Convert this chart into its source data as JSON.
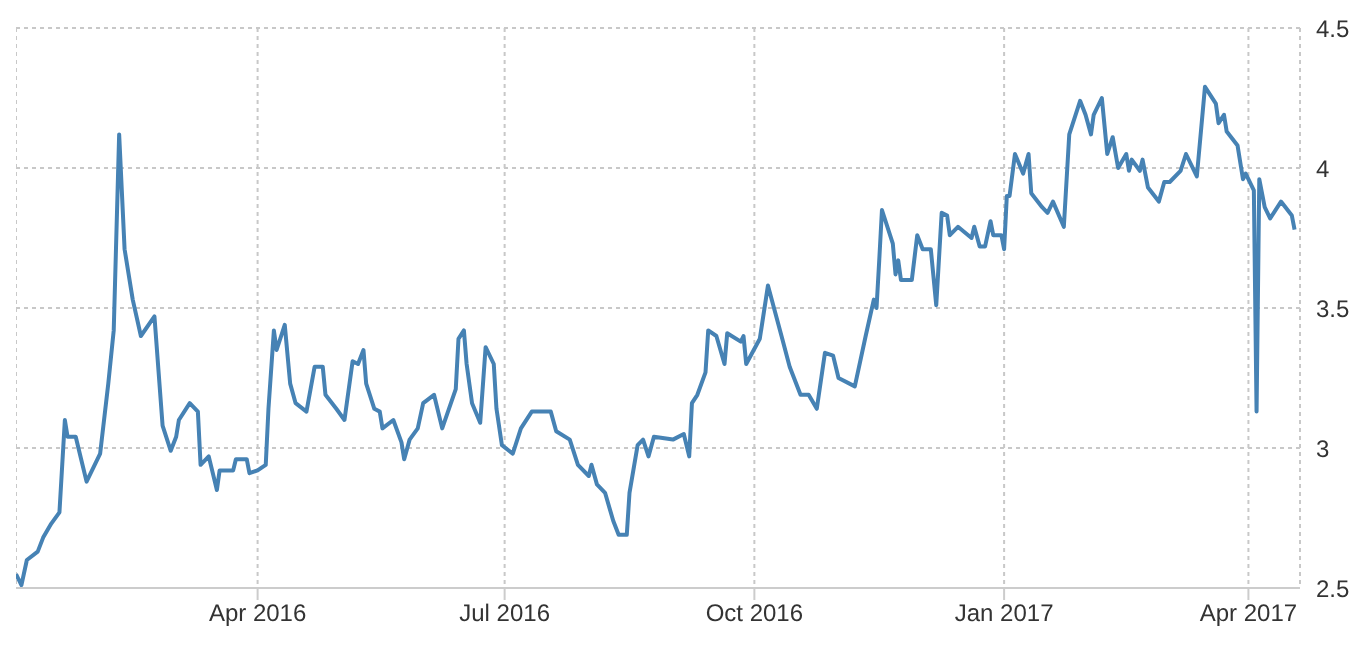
{
  "chart_data": {
    "type": "line",
    "grid": true,
    "xlim": [
      "2016-01-03",
      "2017-04-20"
    ],
    "ylim": [
      2.5,
      4.5
    ],
    "yticks": [
      2.5,
      3,
      3.5,
      4,
      4.5
    ],
    "xticks": [
      {
        "value": "2016-04-01",
        "label": "Apr 2016"
      },
      {
        "value": "2016-07-01",
        "label": "Jul 2016"
      },
      {
        "value": "2016-10-01",
        "label": "Oct 2016"
      },
      {
        "value": "2017-01-01",
        "label": "Jan 2017"
      },
      {
        "value": "2017-04-01",
        "label": "Apr 2017"
      }
    ],
    "x": [
      "2016-01-03",
      "2016-01-05",
      "2016-01-07",
      "2016-01-11",
      "2016-01-13",
      "2016-01-16",
      "2016-01-19",
      "2016-01-21",
      "2016-01-22",
      "2016-01-25",
      "2016-01-27",
      "2016-01-29",
      "2016-02-03",
      "2016-02-06",
      "2016-02-08",
      "2016-02-10",
      "2016-02-12",
      "2016-02-15",
      "2016-02-18",
      "2016-02-23",
      "2016-02-26",
      "2016-02-29",
      "2016-03-02",
      "2016-03-03",
      "2016-03-07",
      "2016-03-10",
      "2016-03-11",
      "2016-03-14",
      "2016-03-17",
      "2016-03-18",
      "2016-03-23",
      "2016-03-24",
      "2016-03-28",
      "2016-03-29",
      "2016-04-01",
      "2016-04-04",
      "2016-04-05",
      "2016-04-07",
      "2016-04-08",
      "2016-04-11",
      "2016-04-13",
      "2016-04-15",
      "2016-04-19",
      "2016-04-22",
      "2016-04-25",
      "2016-04-26",
      "2016-04-30",
      "2016-05-03",
      "2016-05-06",
      "2016-05-08",
      "2016-05-10",
      "2016-05-11",
      "2016-05-14",
      "2016-05-16",
      "2016-05-17",
      "2016-05-21",
      "2016-05-24",
      "2016-05-25",
      "2016-05-27",
      "2016-05-30",
      "2016-06-01",
      "2016-06-05",
      "2016-06-08",
      "2016-06-13",
      "2016-06-14",
      "2016-06-16",
      "2016-06-17",
      "2016-06-19",
      "2016-06-22",
      "2016-06-24",
      "2016-06-27",
      "2016-06-28",
      "2016-06-30",
      "2016-07-04",
      "2016-07-07",
      "2016-07-11",
      "2016-07-15",
      "2016-07-18",
      "2016-07-20",
      "2016-07-25",
      "2016-07-28",
      "2016-08-01",
      "2016-08-02",
      "2016-08-04",
      "2016-08-07",
      "2016-08-10",
      "2016-08-12",
      "2016-08-15",
      "2016-08-16",
      "2016-08-19",
      "2016-08-21",
      "2016-08-23",
      "2016-08-25",
      "2016-09-01",
      "2016-09-05",
      "2016-09-07",
      "2016-09-08",
      "2016-09-10",
      "2016-09-13",
      "2016-09-14",
      "2016-09-17",
      "2016-09-20",
      "2016-09-21",
      "2016-09-26",
      "2016-09-27",
      "2016-09-28",
      "2016-10-03",
      "2016-10-06",
      "2016-10-11",
      "2016-10-14",
      "2016-10-18",
      "2016-10-21",
      "2016-10-24",
      "2016-10-27",
      "2016-10-30",
      "2016-11-01",
      "2016-11-07",
      "2016-11-11",
      "2016-11-14",
      "2016-11-15",
      "2016-11-16",
      "2016-11-17",
      "2016-11-21",
      "2016-11-22",
      "2016-11-23",
      "2016-11-24",
      "2016-11-28",
      "2016-11-30",
      "2016-12-02",
      "2016-12-05",
      "2016-12-07",
      "2016-12-09",
      "2016-12-11",
      "2016-12-12",
      "2016-12-15",
      "2016-12-20",
      "2016-12-21",
      "2016-12-23",
      "2016-12-25",
      "2016-12-27",
      "2016-12-28",
      "2016-12-31",
      "2017-01-01",
      "2017-01-02",
      "2017-01-03",
      "2017-01-05",
      "2017-01-08",
      "2017-01-10",
      "2017-01-11",
      "2017-01-15",
      "2017-01-17",
      "2017-01-19",
      "2017-01-23",
      "2017-01-25",
      "2017-01-29",
      "2017-01-31",
      "2017-02-02",
      "2017-02-03",
      "2017-02-06",
      "2017-02-08",
      "2017-02-10",
      "2017-02-12",
      "2017-02-15",
      "2017-02-16",
      "2017-02-17",
      "2017-02-20",
      "2017-02-21",
      "2017-02-23",
      "2017-02-27",
      "2017-03-01",
      "2017-03-03",
      "2017-03-07",
      "2017-03-09",
      "2017-03-13",
      "2017-03-16",
      "2017-03-20",
      "2017-03-21",
      "2017-03-23",
      "2017-03-24",
      "2017-03-28",
      "2017-03-30",
      "2017-03-31",
      "2017-04-03",
      "2017-04-04",
      "2017-04-05",
      "2017-04-07",
      "2017-04-09",
      "2017-04-13",
      "2017-04-17",
      "2017-04-18"
    ],
    "series": [
      {
        "color": "#4682b4",
        "values": [
          2.55,
          2.51,
          2.6,
          2.63,
          2.68,
          2.73,
          2.77,
          3.1,
          3.04,
          3.04,
          2.96,
          2.88,
          2.98,
          3.23,
          3.42,
          4.12,
          3.71,
          3.53,
          3.4,
          3.47,
          3.08,
          2.99,
          3.04,
          3.1,
          3.16,
          3.13,
          2.94,
          2.97,
          2.85,
          2.92,
          2.92,
          2.96,
          2.96,
          2.91,
          2.92,
          2.94,
          3.14,
          3.42,
          3.35,
          3.44,
          3.23,
          3.16,
          3.13,
          3.29,
          3.29,
          3.19,
          3.14,
          3.1,
          3.31,
          3.3,
          3.35,
          3.23,
          3.14,
          3.13,
          3.07,
          3.1,
          3.02,
          2.96,
          3.03,
          3.07,
          3.16,
          3.19,
          3.07,
          3.21,
          3.39,
          3.42,
          3.3,
          3.16,
          3.09,
          3.36,
          3.3,
          3.14,
          3.01,
          2.98,
          3.07,
          3.13,
          3.13,
          3.13,
          3.06,
          3.03,
          2.94,
          2.9,
          2.94,
          2.87,
          2.84,
          2.74,
          2.69,
          2.69,
          2.84,
          3.01,
          3.03,
          2.97,
          3.04,
          3.03,
          3.05,
          2.97,
          3.16,
          3.19,
          3.27,
          3.42,
          3.4,
          3.3,
          3.41,
          3.38,
          3.4,
          3.3,
          3.39,
          3.58,
          3.4,
          3.29,
          3.19,
          3.19,
          3.14,
          3.34,
          3.33,
          3.25,
          3.22,
          3.4,
          3.53,
          3.5,
          3.67,
          3.85,
          3.73,
          3.62,
          3.67,
          3.6,
          3.6,
          3.76,
          3.71,
          3.71,
          3.51,
          3.84,
          3.83,
          3.76,
          3.79,
          3.75,
          3.79,
          3.72,
          3.72,
          3.81,
          3.76,
          3.76,
          3.71,
          3.9,
          3.9,
          4.05,
          3.98,
          4.05,
          3.91,
          3.86,
          3.84,
          3.88,
          3.79,
          4.12,
          4.24,
          4.19,
          4.12,
          4.19,
          4.25,
          4.05,
          4.11,
          4.0,
          4.05,
          3.99,
          4.03,
          3.99,
          4.03,
          3.93,
          3.88,
          3.95,
          3.95,
          3.99,
          4.05,
          3.97,
          4.29,
          4.23,
          4.16,
          4.19,
          4.13,
          4.08,
          3.96,
          3.98,
          3.92,
          3.13,
          3.96,
          3.86,
          3.82,
          3.88,
          3.83,
          3.78
        ]
      }
    ]
  }
}
